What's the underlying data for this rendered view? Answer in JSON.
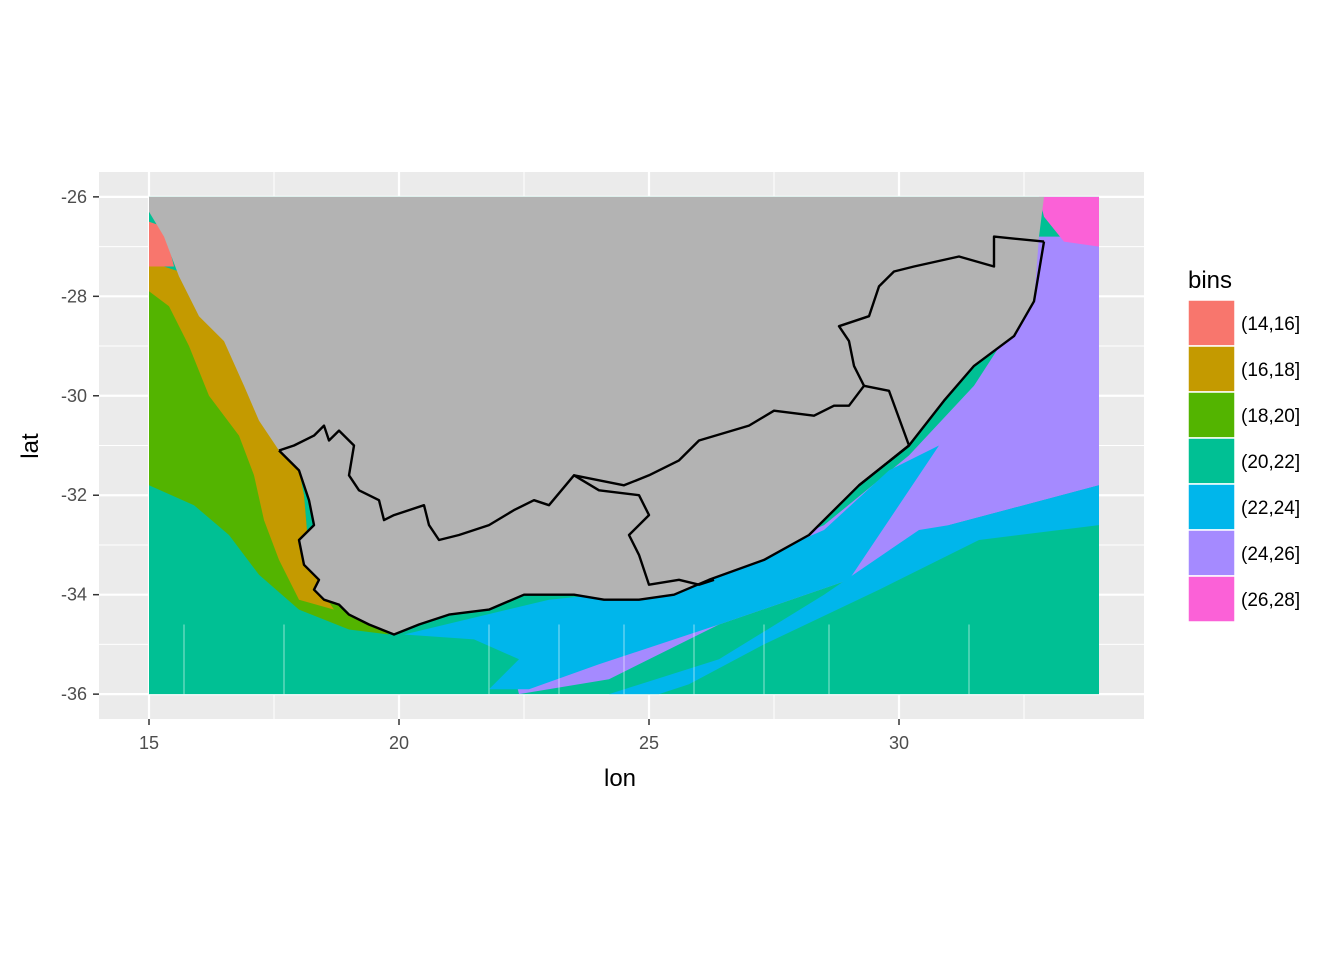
{
  "chart_data": {
    "type": "heatmap",
    "title": "",
    "xlabel": "lon",
    "ylabel": "lat",
    "xlim": [
      14,
      34.9
    ],
    "ylim": [
      -36.5,
      -25.5
    ],
    "x_ticks": [
      15,
      20,
      25,
      30
    ],
    "y_ticks": [
      -26,
      -28,
      -30,
      -32,
      -34,
      -36
    ],
    "x_tick_labels": [
      "15",
      "20",
      "25",
      "30"
    ],
    "y_tick_labels": [
      "-26",
      "-28",
      "-30",
      "-32",
      "-34",
      "-36"
    ],
    "data_extent": {
      "lon": [
        15,
        34
      ],
      "lat": [
        -36,
        -26
      ]
    },
    "legend": {
      "title": "bins",
      "position": "right",
      "entries": [
        {
          "label": "(14,16]",
          "color": "#F8766D"
        },
        {
          "label": "(16,18]",
          "color": "#C49A00"
        },
        {
          "label": "(18,20]",
          "color": "#53B400"
        },
        {
          "label": "(20,22]",
          "color": "#00C094"
        },
        {
          "label": "(22,24]",
          "color": "#00B6EB"
        },
        {
          "label": "(24,26]",
          "color": "#A58AFF"
        },
        {
          "label": "(26,28]",
          "color": "#FB61D7"
        }
      ]
    },
    "land_color": "#B3B3B3",
    "panel_background": "#EBEBEB",
    "grid_color": "#FFFFFF",
    "regions": [
      {
        "name": "ocean-background",
        "bin": "(20,22]",
        "polygon": [
          [
            15,
            -26
          ],
          [
            34,
            -26
          ],
          [
            34,
            -36
          ],
          [
            15,
            -36
          ]
        ]
      },
      {
        "name": "east-warm-current",
        "bin": "(24,26]",
        "polygon": [
          [
            32.8,
            -26.8
          ],
          [
            34,
            -26.8
          ],
          [
            34,
            -31.8
          ],
          [
            31,
            -32.6
          ],
          [
            29,
            -33.7
          ],
          [
            26.4,
            -34.6
          ],
          [
            24.2,
            -35.7
          ],
          [
            22.4,
            -36
          ],
          [
            22.3,
            -35.6
          ],
          [
            24,
            -34.6
          ],
          [
            26.2,
            -33.6
          ],
          [
            28.5,
            -32.6
          ],
          [
            30.2,
            -31.2
          ],
          [
            31.5,
            -29.8
          ],
          [
            32.4,
            -28.4
          ]
        ]
      },
      {
        "name": "east-transition-band",
        "bin": "(22,24]",
        "polygon": [
          [
            34,
            -31.8
          ],
          [
            34,
            -32.6
          ],
          [
            31.6,
            -32.9
          ],
          [
            29.6,
            -33.9
          ],
          [
            27.3,
            -35
          ],
          [
            25.8,
            -35.8
          ],
          [
            25.2,
            -36
          ],
          [
            24.2,
            -36
          ],
          [
            26.4,
            -35.3
          ],
          [
            28.5,
            -34
          ],
          [
            30.4,
            -32.7
          ],
          [
            31,
            -32.6
          ]
        ]
      },
      {
        "name": "agulhas-bank-band",
        "bin": "(22,24]",
        "polygon": [
          [
            20.1,
            -34.8
          ],
          [
            23,
            -34.1
          ],
          [
            26,
            -33.8
          ],
          [
            28.5,
            -32.7
          ],
          [
            29.8,
            -31.5
          ],
          [
            30.8,
            -31
          ],
          [
            29,
            -33.7
          ],
          [
            26.4,
            -34.6
          ],
          [
            24,
            -35.4
          ],
          [
            22.6,
            -35.9
          ],
          [
            21.8,
            -35.9
          ],
          [
            22.4,
            -35.3
          ],
          [
            21.5,
            -34.9
          ]
        ]
      },
      {
        "name": "west-tropical-patch",
        "bin": "(26,28]",
        "polygon": [
          [
            32.8,
            -26
          ],
          [
            34,
            -26
          ],
          [
            34,
            -27
          ],
          [
            33.3,
            -26.9
          ],
          [
            32.9,
            -26.4
          ]
        ]
      },
      {
        "name": "west-coastal-band",
        "bin": "(18,20]",
        "polygon": [
          [
            15,
            -27.7
          ],
          [
            15.8,
            -27.8
          ],
          [
            17,
            -29.2
          ],
          [
            17.9,
            -31
          ],
          [
            18.1,
            -32
          ],
          [
            18.2,
            -33.2
          ],
          [
            18.7,
            -34
          ],
          [
            19.3,
            -34.4
          ],
          [
            19.8,
            -34.8
          ],
          [
            19,
            -34.7
          ],
          [
            18,
            -34.3
          ],
          [
            17.2,
            -33.6
          ],
          [
            16.6,
            -32.8
          ],
          [
            15.9,
            -32.2
          ],
          [
            15,
            -31.8
          ]
        ]
      },
      {
        "name": "west-upwelling-band",
        "bin": "(16,18]",
        "polygon": [
          [
            15,
            -27.3
          ],
          [
            15.6,
            -27.5
          ],
          [
            16.3,
            -28.2
          ],
          [
            16.9,
            -28.9
          ],
          [
            17.5,
            -30
          ],
          [
            17.9,
            -31
          ],
          [
            18.1,
            -32
          ],
          [
            18.2,
            -33.2
          ],
          [
            18.5,
            -34
          ],
          [
            18.7,
            -34.3
          ],
          [
            18,
            -34.1
          ],
          [
            17.6,
            -33.3
          ],
          [
            17.3,
            -32.5
          ],
          [
            17.1,
            -31.6
          ],
          [
            16.8,
            -30.8
          ],
          [
            16.2,
            -30
          ],
          [
            15.8,
            -29
          ],
          [
            15.4,
            -28.2
          ],
          [
            15,
            -27.9
          ]
        ]
      },
      {
        "name": "west-cold-coast",
        "bin": "(14,16]",
        "polygon": [
          [
            15,
            -26.5
          ],
          [
            15.3,
            -26.6
          ],
          [
            15.5,
            -27.4
          ],
          [
            15,
            -27.4
          ]
        ]
      },
      {
        "name": "southern-africa-land",
        "bin": "land",
        "polygon": [
          [
            15,
            -26
          ],
          [
            32.9,
            -26
          ],
          [
            32.8,
            -26.8
          ],
          [
            32.7,
            -28.1
          ],
          [
            32.3,
            -28.8
          ],
          [
            31.5,
            -29.4
          ],
          [
            30.9,
            -30.1
          ],
          [
            30.2,
            -31
          ],
          [
            29.2,
            -31.8
          ],
          [
            28.2,
            -32.8
          ],
          [
            27.3,
            -33.3
          ],
          [
            26.2,
            -33.7
          ],
          [
            25.5,
            -34
          ],
          [
            24.8,
            -34.1
          ],
          [
            24.1,
            -34.1
          ],
          [
            23.5,
            -34
          ],
          [
            22.5,
            -34
          ],
          [
            21.8,
            -34.3
          ],
          [
            21,
            -34.4
          ],
          [
            20.4,
            -34.6
          ],
          [
            19.9,
            -34.8
          ],
          [
            19.4,
            -34.6
          ],
          [
            19,
            -34.4
          ],
          [
            18.8,
            -34.2
          ],
          [
            18.5,
            -34.1
          ],
          [
            18.3,
            -33.9
          ],
          [
            18.4,
            -33.7
          ],
          [
            18.1,
            -33.4
          ],
          [
            18,
            -32.9
          ],
          [
            18.3,
            -32.6
          ],
          [
            18.2,
            -32.1
          ],
          [
            18,
            -31.5
          ],
          [
            17.6,
            -31.1
          ],
          [
            17.2,
            -30.5
          ],
          [
            16.9,
            -29.8
          ],
          [
            16.5,
            -28.9
          ],
          [
            16,
            -28.4
          ],
          [
            15.6,
            -27.6
          ],
          [
            15.3,
            -26.8
          ],
          [
            15,
            -26.3
          ]
        ]
      }
    ],
    "borders": [
      [
        [
          32.9,
          -26.9
        ],
        [
          32.7,
          -28.1
        ],
        [
          32.3,
          -28.8
        ],
        [
          31.5,
          -29.4
        ],
        [
          30.9,
          -30.1
        ],
        [
          30.2,
          -31
        ],
        [
          29.2,
          -31.8
        ],
        [
          28.2,
          -32.8
        ],
        [
          27.3,
          -33.3
        ],
        [
          26.2,
          -33.7
        ],
        [
          25.5,
          -34
        ],
        [
          24.8,
          -34.1
        ],
        [
          24.1,
          -34.1
        ],
        [
          23.5,
          -34
        ],
        [
          22.5,
          -34
        ],
        [
          21.8,
          -34.3
        ],
        [
          21,
          -34.4
        ],
        [
          20.4,
          -34.6
        ],
        [
          19.9,
          -34.8
        ],
        [
          19.4,
          -34.6
        ],
        [
          19,
          -34.4
        ],
        [
          18.8,
          -34.2
        ],
        [
          18.5,
          -34.1
        ],
        [
          18.3,
          -33.9
        ],
        [
          18.4,
          -33.7
        ],
        [
          18.1,
          -33.4
        ],
        [
          18,
          -32.9
        ],
        [
          18.3,
          -32.6
        ],
        [
          18.2,
          -32.1
        ],
        [
          18,
          -31.5
        ],
        [
          17.6,
          -31.1
        ]
      ],
      [
        [
          17.6,
          -31.1
        ],
        [
          17.9,
          -31
        ],
        [
          18.3,
          -30.8
        ],
        [
          18.5,
          -30.6
        ],
        [
          18.6,
          -30.9
        ],
        [
          18.8,
          -30.7
        ],
        [
          19.1,
          -31
        ],
        [
          19,
          -31.6
        ],
        [
          19.2,
          -31.9
        ],
        [
          19.6,
          -32.1
        ],
        [
          19.7,
          -32.5
        ],
        [
          19.9,
          -32.4
        ],
        [
          20.5,
          -32.2
        ],
        [
          20.6,
          -32.6
        ],
        [
          20.8,
          -32.9
        ],
        [
          21.2,
          -32.8
        ],
        [
          21.8,
          -32.6
        ],
        [
          22.3,
          -32.3
        ],
        [
          22.7,
          -32.1
        ],
        [
          23,
          -32.2
        ],
        [
          23.5,
          -31.6
        ],
        [
          24,
          -31.9
        ],
        [
          24.8,
          -32
        ],
        [
          25,
          -32.4
        ],
        [
          24.6,
          -32.8
        ],
        [
          24.8,
          -33.2
        ],
        [
          25,
          -33.8
        ],
        [
          25.6,
          -33.7
        ],
        [
          26,
          -33.8
        ],
        [
          26.3,
          -33.7
        ]
      ],
      [
        [
          23.5,
          -31.6
        ],
        [
          24.5,
          -31.8
        ],
        [
          25,
          -31.6
        ],
        [
          25.6,
          -31.3
        ],
        [
          26,
          -30.9
        ],
        [
          27,
          -30.6
        ],
        [
          27.5,
          -30.3
        ],
        [
          28.3,
          -30.4
        ],
        [
          28.7,
          -30.2
        ],
        [
          29,
          -30.2
        ],
        [
          29.3,
          -29.8
        ],
        [
          29.8,
          -29.9
        ],
        [
          30.2,
          -31
        ],
        [
          29.2,
          -31.8
        ]
      ],
      [
        [
          29.3,
          -29.8
        ],
        [
          29.1,
          -29.4
        ],
        [
          29,
          -28.9
        ],
        [
          28.8,
          -28.6
        ],
        [
          29.4,
          -28.4
        ],
        [
          29.6,
          -27.8
        ],
        [
          29.9,
          -27.5
        ],
        [
          30.3,
          -27.4
        ],
        [
          31.2,
          -27.2
        ],
        [
          31.9,
          -27.4
        ],
        [
          31.9,
          -26.8
        ],
        [
          32.9,
          -26.9
        ]
      ]
    ]
  }
}
